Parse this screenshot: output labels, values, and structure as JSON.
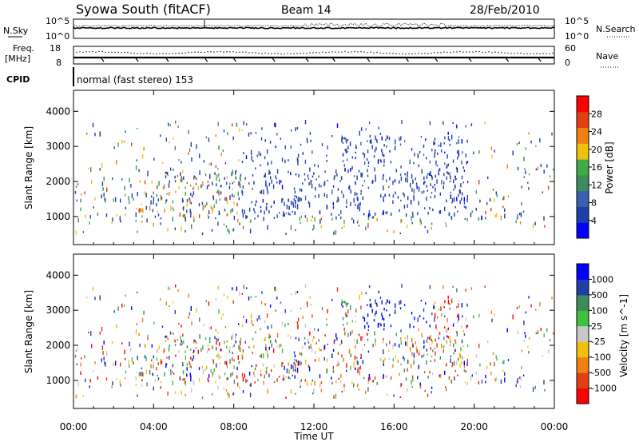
{
  "header": {
    "station": "Syowa South (fitACF)",
    "beam": "Beam 14",
    "date": "28/Feb/2010"
  },
  "noise_panel": {
    "left_label": "N.Sky",
    "right_label": "N.Search",
    "left_ticks": [
      "10^5",
      "10^0"
    ],
    "right_ticks": [
      "10^5",
      "10^0"
    ]
  },
  "freq_panel": {
    "left_label_top": "Freq.",
    "left_label_bottom": "[MHz]",
    "right_label": "Nave",
    "left_ticks": [
      "18",
      "8"
    ],
    "right_ticks": [
      "60",
      "0"
    ]
  },
  "cpid": {
    "label": "CPID",
    "text": "normal (fast stereo) 153"
  },
  "colors": {
    "power_scale": [
      "#0000ff",
      "#1f3fa8",
      "#3a5fb0",
      "#3e8a5a",
      "#3faa4a",
      "#f0c010",
      "#f08010",
      "#e04010",
      "#ff0000"
    ],
    "velocity_scale": [
      "#ff0000",
      "#e04010",
      "#f08010",
      "#f0c010",
      "#c8c8c8",
      "#3fc03f",
      "#3e8a5a",
      "#1f3fa8",
      "#0000ff"
    ]
  },
  "chart_data": [
    {
      "type": "heatmap",
      "name": "power",
      "ylabel": "Slant Range [km]",
      "yticks": [
        "1000",
        "2000",
        "3000",
        "4000"
      ],
      "ylim": [
        200,
        4600
      ],
      "colorbar_label": "Power [dB]",
      "colorbar_ticks": [
        "4",
        "8",
        "12",
        "16",
        "20",
        "24",
        "28"
      ],
      "colorbar_range": [
        0,
        32
      ]
    },
    {
      "type": "heatmap",
      "name": "velocity",
      "ylabel": "Slant Range [km]",
      "yticks": [
        "1000",
        "2000",
        "3000",
        "4000"
      ],
      "ylim": [
        200,
        4600
      ],
      "colorbar_label": "Velocity [m s^-1]",
      "colorbar_ticks": [
        "-1000",
        "-500",
        "-100",
        "-25",
        "25",
        "100",
        "500",
        "1000"
      ]
    }
  ],
  "time_axis": {
    "ticks": [
      "00:00",
      "04:00",
      "08:00",
      "12:00",
      "16:00",
      "20:00",
      "00:00"
    ],
    "label": "Time UT"
  }
}
